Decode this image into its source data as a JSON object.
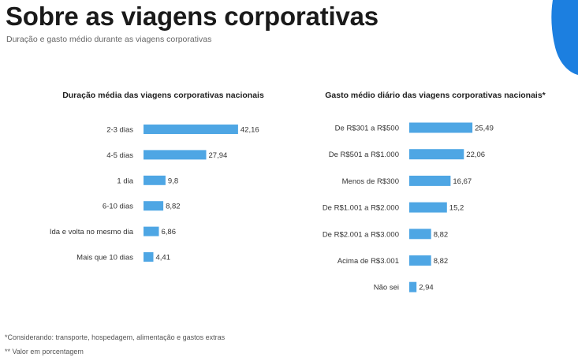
{
  "header": {
    "title": "Sobre as viagens corporativas",
    "subtitle": "Duração e gasto médio durante as viagens corporativas"
  },
  "footnotes": {
    "note1": "*Considerando: transporte, hospedagem, alimentação e gastos extras",
    "note2": "** Valor em porcentagem"
  },
  "colors": {
    "bar": "#4ea6e4",
    "accent": "#1c7fe0"
  },
  "chart_data": [
    {
      "type": "bar",
      "orientation": "horizontal",
      "title": "Duração média das viagens corporativas nacionais",
      "categories": [
        "2-3 dias",
        "4-5 dias",
        "1 dia",
        "6-10 dias",
        "Ida e volta no mesmo dia",
        "Mais que 10 dias"
      ],
      "values": [
        42.16,
        27.94,
        9.8,
        8.82,
        6.86,
        4.41
      ],
      "value_labels": [
        "42,16",
        "27,94",
        "9,8",
        "8,82",
        "6,86",
        "4,41"
      ],
      "xlim": [
        0,
        45
      ],
      "unit": "%"
    },
    {
      "type": "bar",
      "orientation": "horizontal",
      "title": "Gasto médio diário das viagens corporativas nacionais*",
      "categories": [
        "De R$301 a R$500",
        "De R$501 a R$1.000",
        "Menos de R$300",
        "De R$1.001 a R$2.000",
        "De R$2.001 a R$3.000",
        "Acima de R$3.001",
        "Não sei"
      ],
      "values": [
        25.49,
        22.06,
        16.67,
        15.2,
        8.82,
        8.82,
        2.94
      ],
      "value_labels": [
        "25,49",
        "22,06",
        "16,67",
        "15,2",
        "8,82",
        "8,82",
        "2,94"
      ],
      "xlim": [
        0,
        28
      ],
      "unit": "%"
    }
  ]
}
